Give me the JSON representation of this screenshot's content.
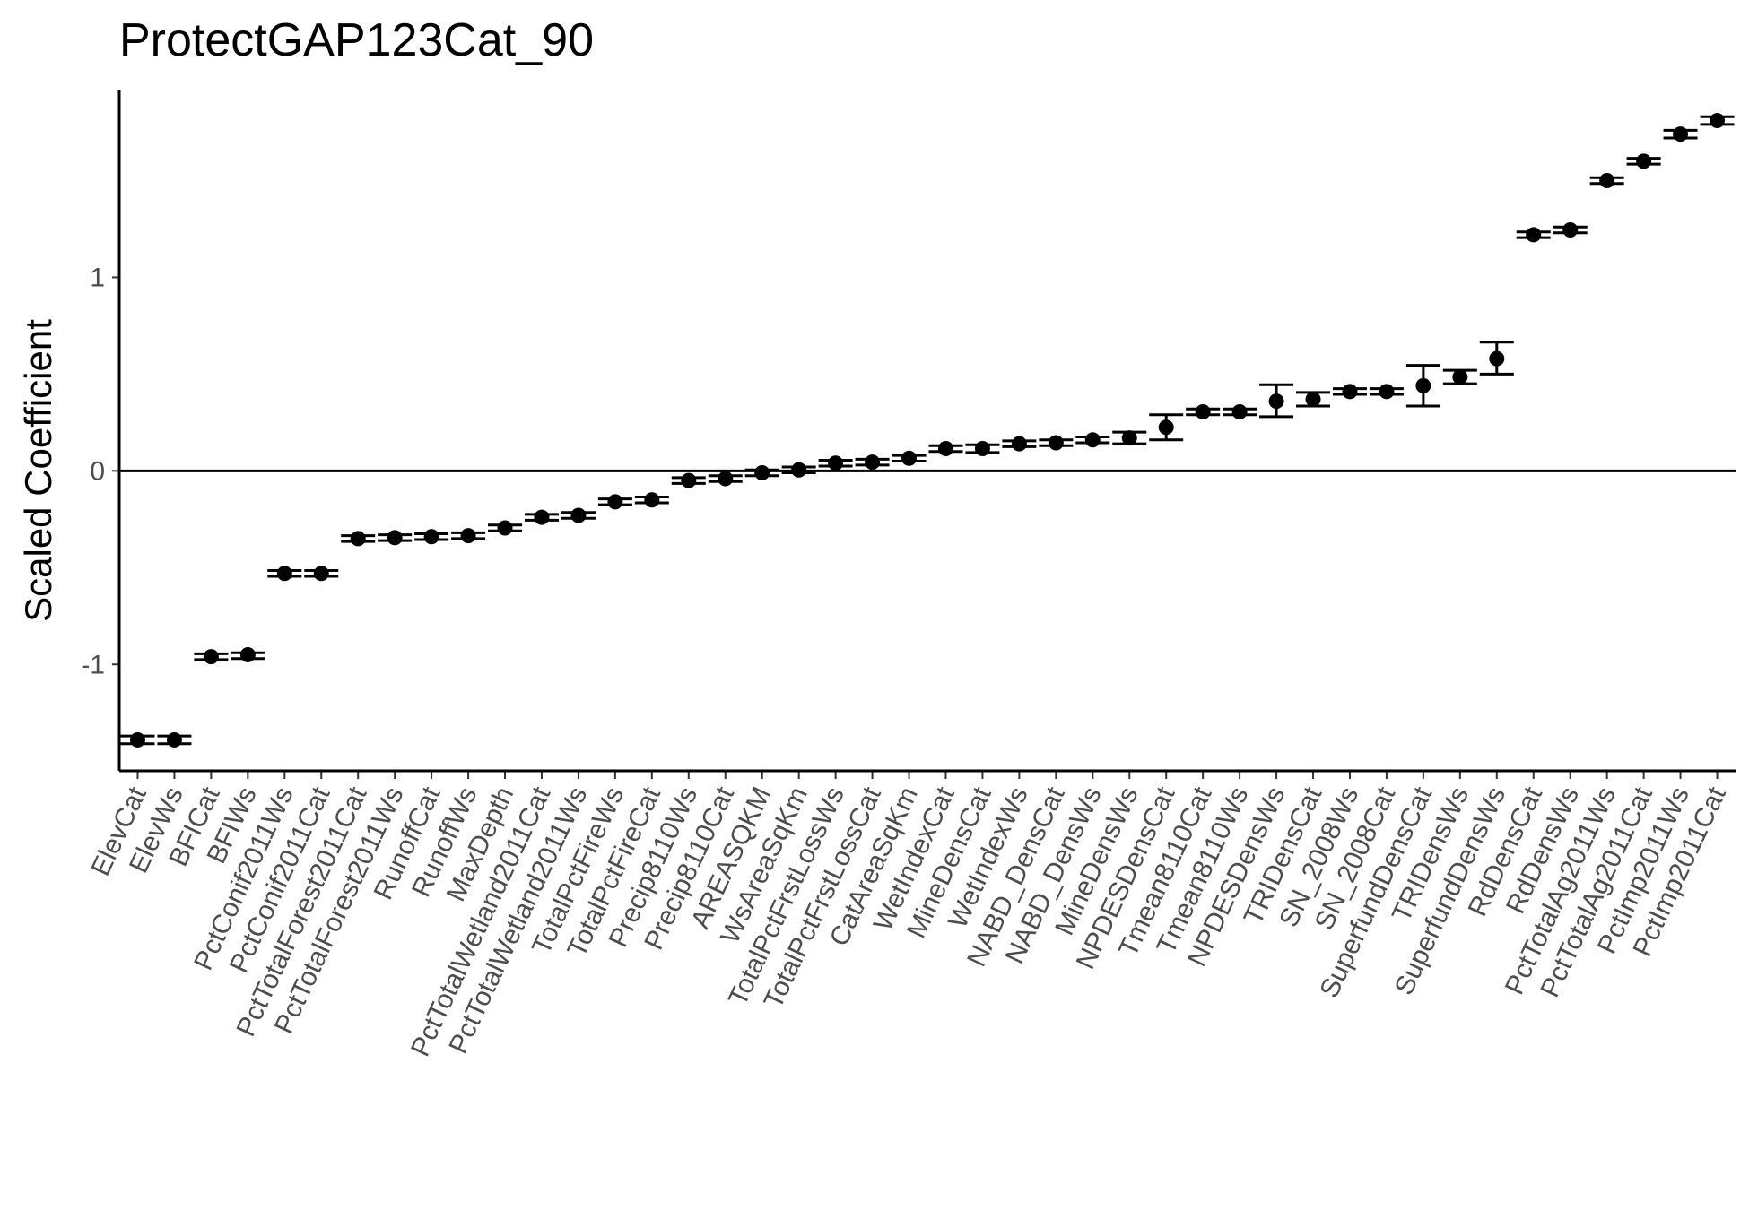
{
  "chart_data": {
    "type": "scatter",
    "title": "ProtectGAP123Cat_90",
    "xlabel": "",
    "ylabel": "Scaled Coefficient",
    "ylim": [
      -1.55,
      1.97
    ],
    "yticks": [
      -1,
      0,
      1
    ],
    "reference_line_y": 0,
    "grid": false,
    "error_bars": true,
    "categories": [
      "ElevCat",
      "ElevWs",
      "BFICat",
      "BFIWs",
      "PctConif2011Ws",
      "PctConif2011Cat",
      "PctTotalForest2011Cat",
      "PctTotalForest2011Ws",
      "RunoffCat",
      "RunoffWs",
      "MaxDepth",
      "PctTotalWetland2011Cat",
      "PctTotalWetland2011Ws",
      "TotalPctFireWs",
      "TotalPctFireCat",
      "Precip8110Ws",
      "Precip8110Cat",
      "AREASQKM",
      "WsAreaSqKm",
      "TotalPctFrstLossWs",
      "TotalPctFrstLossCat",
      "CatAreaSqKm",
      "WetIndexCat",
      "MineDensCat",
      "WetIndexWs",
      "NABD_DensCat",
      "NABD_DensWs",
      "MineDensWs",
      "NPDESDensCat",
      "Tmean8110Cat",
      "Tmean8110Ws",
      "NPDESDensWs",
      "TRIDensCat",
      "SN_2008Ws",
      "SN_2008Cat",
      "SuperfundDensCat",
      "TRIDensWs",
      "SuperfundDensWs",
      "RdDensCat",
      "RdDensWs",
      "PctTotalAg2011Ws",
      "PctTotalAg2011Cat",
      "PctImp2011Ws",
      "PctImp2011Cat"
    ],
    "values": [
      -1.39,
      -1.39,
      -0.96,
      -0.95,
      -0.53,
      -0.53,
      -0.35,
      -0.345,
      -0.34,
      -0.335,
      -0.295,
      -0.24,
      -0.23,
      -0.16,
      -0.15,
      -0.05,
      -0.04,
      -0.01,
      0.005,
      0.04,
      0.045,
      0.065,
      0.115,
      0.115,
      0.14,
      0.145,
      0.16,
      0.17,
      0.225,
      0.305,
      0.305,
      0.36,
      0.37,
      0.41,
      0.41,
      0.44,
      0.485,
      0.58,
      1.22,
      1.245,
      1.5,
      1.6,
      1.74,
      1.81
    ],
    "lower": [
      -1.41,
      -1.41,
      -0.975,
      -0.97,
      -0.545,
      -0.545,
      -0.365,
      -0.36,
      -0.355,
      -0.35,
      -0.31,
      -0.255,
      -0.245,
      -0.175,
      -0.165,
      -0.065,
      -0.055,
      -0.025,
      -0.01,
      0.025,
      0.03,
      0.05,
      0.1,
      0.095,
      0.125,
      0.13,
      0.145,
      0.14,
      0.16,
      0.29,
      0.29,
      0.28,
      0.335,
      0.395,
      0.395,
      0.335,
      0.45,
      0.5,
      1.205,
      1.23,
      1.485,
      1.585,
      1.72,
      1.79
    ],
    "upper": [
      -1.37,
      -1.37,
      -0.945,
      -0.94,
      -0.515,
      -0.515,
      -0.335,
      -0.33,
      -0.325,
      -0.32,
      -0.28,
      -0.225,
      -0.215,
      -0.145,
      -0.135,
      -0.035,
      -0.025,
      0.005,
      0.02,
      0.055,
      0.06,
      0.08,
      0.13,
      0.135,
      0.155,
      0.16,
      0.175,
      0.2,
      0.29,
      0.32,
      0.32,
      0.445,
      0.405,
      0.425,
      0.425,
      0.545,
      0.52,
      0.665,
      1.235,
      1.26,
      1.515,
      1.615,
      1.76,
      1.83
    ]
  }
}
